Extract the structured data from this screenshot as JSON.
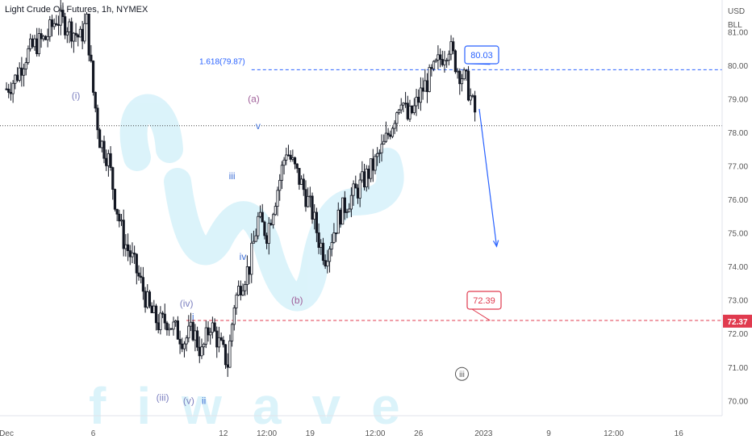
{
  "chart_data": {
    "type": "candlestick",
    "title": "Light Crude Oil Futures, 1h, NYMEX",
    "currency": "USD",
    "unit": "BLL",
    "y_ticks": [
      "81.00",
      "80.00",
      "79.00",
      "78.00",
      "77.00",
      "76.00",
      "75.00",
      "74.00",
      "73.00",
      "72.00",
      "71.00",
      "70.00"
    ],
    "ylim": [
      69.55,
      81.95
    ],
    "x_ticks": [
      {
        "label": "Dec",
        "t": 0.0
      },
      {
        "label": "6",
        "t": 4.0
      },
      {
        "label": "12",
        "t": 10.0
      },
      {
        "label": "12:00",
        "t": 12.0
      },
      {
        "label": "19",
        "t": 14.0
      },
      {
        "label": "12:00",
        "t": 17.0
      },
      {
        "label": "26",
        "t": 19.0
      },
      {
        "label": "2023",
        "t": 22.0
      },
      {
        "label": "9",
        "t": 25.0
      },
      {
        "label": "12:00",
        "t": 28.0
      },
      {
        "label": "16",
        "t": 31.0
      }
    ],
    "xlim": [
      -0.3,
      33.0
    ],
    "series_path": [
      [
        0.0,
        79.3
      ],
      [
        0.4,
        79.6
      ],
      [
        0.9,
        80.3
      ],
      [
        1.3,
        80.6
      ],
      [
        1.8,
        80.8
      ],
      [
        2.3,
        81.4
      ],
      [
        2.8,
        81.2
      ],
      [
        3.4,
        80.8
      ],
      [
        3.7,
        81.3
      ],
      [
        4.0,
        79.2
      ],
      [
        4.3,
        77.8
      ],
      [
        4.7,
        77.2
      ],
      [
        5.0,
        76.0
      ],
      [
        5.4,
        74.8
      ],
      [
        5.8,
        74.2
      ],
      [
        6.2,
        73.5
      ],
      [
        6.6,
        72.7
      ],
      [
        7.0,
        72.3
      ],
      [
        7.4,
        72.4
      ],
      [
        7.8,
        72.1
      ],
      [
        8.2,
        71.8
      ],
      [
        8.6,
        72.1
      ],
      [
        9.0,
        71.4
      ],
      [
        9.4,
        72.3
      ],
      [
        9.8,
        71.7
      ],
      [
        10.2,
        71.1
      ],
      [
        10.5,
        72.9
      ],
      [
        10.8,
        73.5
      ],
      [
        11.2,
        74.0
      ],
      [
        11.6,
        75.4
      ],
      [
        12.0,
        75.0
      ],
      [
        12.3,
        75.8
      ],
      [
        12.6,
        76.6
      ],
      [
        12.9,
        77.5
      ],
      [
        13.3,
        76.9
      ],
      [
        13.7,
        76.3
      ],
      [
        14.1,
        75.6
      ],
      [
        14.4,
        74.8
      ],
      [
        14.7,
        74.3
      ],
      [
        15.0,
        74.9
      ],
      [
        15.4,
        75.6
      ],
      [
        15.8,
        76.0
      ],
      [
        16.2,
        76.3
      ],
      [
        16.6,
        76.7
      ],
      [
        17.0,
        77.1
      ],
      [
        17.4,
        77.6
      ],
      [
        17.8,
        78.3
      ],
      [
        18.2,
        79.1
      ],
      [
        18.5,
        78.4
      ],
      [
        18.8,
        78.7
      ],
      [
        19.2,
        79.3
      ],
      [
        19.6,
        79.7
      ],
      [
        20.0,
        80.2
      ],
      [
        20.4,
        80.6
      ],
      [
        20.8,
        79.9
      ],
      [
        21.2,
        79.5
      ],
      [
        21.5,
        78.8
      ],
      [
        21.7,
        78.4
      ]
    ],
    "current_price_line": 78.2,
    "fib_level": {
      "label": "1.618(79.87)",
      "value": 79.87
    },
    "target_up": {
      "label": "80.03",
      "value": 80.03
    },
    "target_down": {
      "label": "72.39",
      "value": 72.39
    },
    "price_tag": {
      "label": "72.37",
      "value": 72.37
    },
    "projection_arrow": {
      "from": [
        21.8,
        78.7
      ],
      "to": [
        22.6,
        74.6
      ]
    },
    "wave_labels": [
      {
        "text": "(i)",
        "t": 3.2,
        "y": 79.0,
        "color": "#7b7fbf"
      },
      {
        "text": "(a)",
        "t": 11.4,
        "y": 78.9,
        "color": "#a0609a"
      },
      {
        "text": "v",
        "t": 11.6,
        "y": 78.1,
        "color": "#3f6fd6"
      },
      {
        "text": "iii",
        "t": 10.4,
        "y": 76.6,
        "color": "#3f6fd6"
      },
      {
        "text": "iv",
        "t": 10.9,
        "y": 74.2,
        "color": "#3f6fd6"
      },
      {
        "text": "(b)",
        "t": 13.4,
        "y": 72.9,
        "color": "#a0609a"
      },
      {
        "text": "(iv)",
        "t": 8.3,
        "y": 72.8,
        "color": "#7b7fbf"
      },
      {
        "text": "i",
        "t": 8.6,
        "y": 72.4,
        "color": "#3f6fd6"
      },
      {
        "text": "(iii)",
        "t": 7.2,
        "y": 70.0,
        "color": "#7b7fbf"
      },
      {
        "text": "(v)",
        "t": 8.4,
        "y": 69.9,
        "color": "#7b7fbf"
      },
      {
        "text": "ii",
        "t": 9.1,
        "y": 69.9,
        "color": "#3f6fd6"
      }
    ],
    "circled_label": {
      "text": "iii",
      "t": 21.0,
      "y": 70.7,
      "color": "#555555"
    },
    "watermark": "fiwave",
    "colors": {
      "blue": "#2962ff",
      "red": "#e03a4e",
      "candle": "#131722",
      "grid": "#b2b5be",
      "watermark": "#bfeaf7"
    }
  }
}
